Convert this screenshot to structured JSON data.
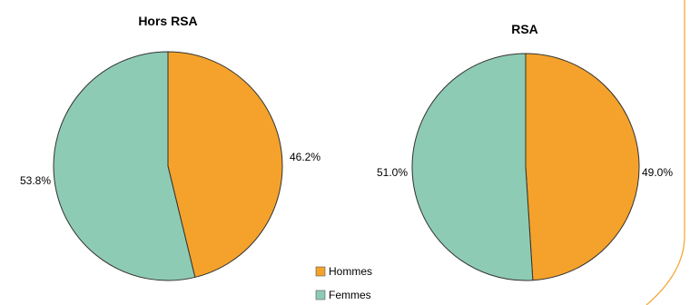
{
  "chart_data": [
    {
      "type": "pie",
      "title": "Hors RSA",
      "slices": [
        {
          "label": "Hommes",
          "value": 46.2,
          "display": "46.2%",
          "color": "#F4A22B"
        },
        {
          "label": "Femmes",
          "value": 53.8,
          "display": "53.8%",
          "color": "#8ECBB4"
        }
      ]
    },
    {
      "type": "pie",
      "title": "RSA",
      "slices": [
        {
          "label": "Hommes",
          "value": 49.0,
          "display": "49.0%",
          "color": "#F4A22B"
        },
        {
          "label": "Femmes",
          "value": 51.0,
          "display": "51.0%",
          "color": "#8ECBB4"
        }
      ]
    }
  ],
  "legend": {
    "placement": "bottom-center",
    "items": [
      {
        "label": "Hommes",
        "color": "#F4A22B"
      },
      {
        "label": "Femmes",
        "color": "#8ECBB4"
      }
    ]
  },
  "decoration": {
    "border_color": "#F4A22B"
  }
}
